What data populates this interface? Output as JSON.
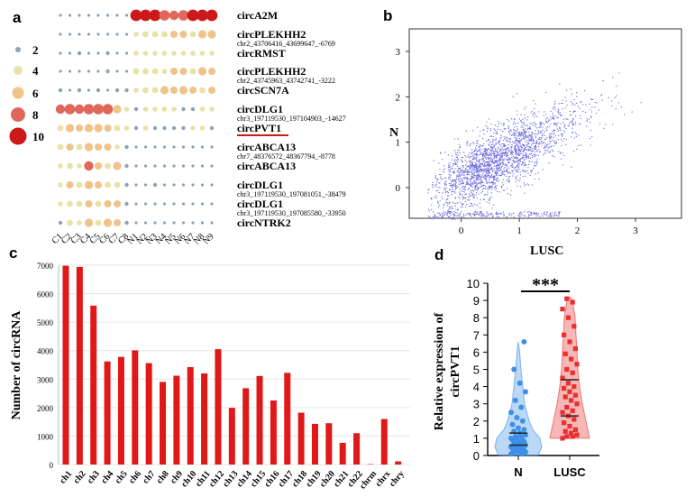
{
  "panels": {
    "a": {
      "letter": "a",
      "legend": [
        {
          "label": "2",
          "color": "#8fa2b4"
        },
        {
          "label": "4",
          "color": "#e8e2a6"
        },
        {
          "label": "6",
          "color": "#efc38a"
        },
        {
          "label": "8",
          "color": "#e0675c"
        },
        {
          "label": "10",
          "color": "#cc1a1a"
        }
      ],
      "samples": [
        "C1",
        "C2",
        "C3",
        "C4",
        "C5",
        "C6",
        "C7",
        "C8",
        "N1",
        "N2",
        "N3",
        "N4",
        "N5",
        "N6",
        "N7",
        "N8",
        "N9"
      ],
      "rows": [
        {
          "name": "circA2M",
          "sub": "",
          "values": [
            1,
            1,
            1,
            1,
            1,
            1,
            1,
            1,
            9,
            9,
            9,
            8,
            7,
            8,
            9,
            9,
            9
          ]
        },
        {
          "name": "circPLEKHH2",
          "sub": "chr2_43706416_43699647_-6769",
          "values": [
            1,
            1,
            1,
            1,
            1,
            1,
            1,
            1,
            3,
            4,
            4,
            4,
            5,
            5,
            4,
            6,
            6
          ]
        },
        {
          "name": "circRMST",
          "sub": "",
          "values": [
            1,
            1,
            2,
            1,
            1,
            2,
            1,
            1,
            3,
            3,
            3,
            3,
            3,
            3,
            3,
            3,
            3
          ]
        },
        {
          "name": "circPLEKHH2",
          "sub": "chr2_43745963_43742741_-3222",
          "values": [
            1,
            1,
            1,
            1,
            1,
            2,
            1,
            1,
            4,
            4,
            4,
            3,
            5,
            5,
            4,
            6,
            5
          ]
        },
        {
          "name": "circSCN7A",
          "sub": "",
          "values": [
            2,
            1,
            2,
            1,
            2,
            1,
            2,
            2,
            3,
            4,
            4,
            6,
            5,
            6,
            5,
            4,
            5
          ]
        },
        {
          "name": "circDLG1",
          "sub": "chr3_197119530_197104903_-14627",
          "values": [
            7,
            8,
            7,
            8,
            8,
            8,
            6,
            3,
            2,
            3,
            3,
            3,
            3,
            2,
            2,
            3,
            3
          ]
        },
        {
          "name": "circPVT1",
          "sub": "",
          "values": [
            4,
            6,
            5,
            6,
            6,
            5,
            4,
            3,
            2,
            3,
            2,
            2,
            2,
            2,
            3,
            3,
            2
          ]
        },
        {
          "name": "circABCA13",
          "sub": "chr7_48376572_48367794_-8778",
          "values": [
            4,
            5,
            4,
            6,
            5,
            5,
            3,
            2,
            1,
            1,
            1,
            1,
            1,
            1,
            1,
            1,
            1
          ]
        },
        {
          "name": "circABCA13",
          "sub": "",
          "values": [
            3,
            4,
            3,
            7,
            5,
            4,
            6,
            2,
            1,
            1,
            1,
            1,
            1,
            1,
            1,
            1,
            1
          ]
        },
        {
          "name": "circDLG1",
          "sub": "chr3_197119530_197081051_-38479",
          "values": [
            3,
            5,
            4,
            6,
            5,
            4,
            4,
            2,
            1,
            1,
            2,
            1,
            1,
            1,
            1,
            1,
            1
          ]
        },
        {
          "name": "circDLG1",
          "sub": "chr3_197119530_197085580_-33950",
          "values": [
            3,
            4,
            4,
            5,
            4,
            5,
            5,
            2,
            1,
            1,
            1,
            1,
            1,
            1,
            1,
            1,
            1
          ]
        },
        {
          "name": "circNTRK2",
          "sub": "",
          "values": [
            2,
            4,
            3,
            6,
            4,
            6,
            5,
            2,
            1,
            1,
            1,
            1,
            1,
            1,
            1,
            1,
            1
          ]
        }
      ],
      "highlight_color": "#cc1a1a"
    },
    "b": {
      "letter": "b",
      "ylabel": "N",
      "xlabel": "LUSC",
      "xticks": [
        "0",
        "1",
        "2",
        "3"
      ],
      "yticks": [
        "0",
        "1",
        "2",
        "3"
      ],
      "point_color": "#2a2ad0"
    },
    "c": {
      "letter": "c",
      "ylabel": "Number of circRNA",
      "bar_color": "#e01818"
    },
    "d": {
      "letter": "d",
      "ylabel_line1": "Relative expression of",
      "ylabel_line2": "circPVT1",
      "significance": "***",
      "n_color": "#3d8fe8",
      "lusc_color": "#e83030"
    }
  },
  "chart_data": [
    {
      "type": "heatmap",
      "panel": "a",
      "rows": [
        "circA2M",
        "circPLEKHH2",
        "circRMST",
        "circPLEKHH2",
        "circSCN7A",
        "circDLG1",
        "circPVT1",
        "circABCA13",
        "circABCA13",
        "circDLG1",
        "circDLG1",
        "circNTRK2"
      ],
      "columns": [
        "C1",
        "C2",
        "C3",
        "C4",
        "C5",
        "C6",
        "C7",
        "C8",
        "N1",
        "N2",
        "N3",
        "N4",
        "N5",
        "N6",
        "N7",
        "N8",
        "N9"
      ],
      "legend_values": [
        2,
        4,
        6,
        8,
        10
      ]
    },
    {
      "type": "scatter",
      "panel": "b",
      "xlabel": "LUSC",
      "ylabel": "N",
      "xlim": [
        -0.8,
        3.7
      ],
      "ylim": [
        -0.8,
        3.5
      ],
      "xticks": [
        0,
        1,
        2,
        3
      ],
      "yticks": [
        0,
        1,
        2,
        3
      ],
      "trend": {
        "slope": 0.65,
        "intercept": 0.2
      }
    },
    {
      "type": "bar",
      "panel": "c",
      "ylabel": "Number of circRNA",
      "ylim": [
        0,
        7000
      ],
      "yticks": [
        0,
        1000,
        2000,
        3000,
        4000,
        5000,
        6000,
        7000
      ],
      "categories": [
        "ch1",
        "ch2",
        "ch3",
        "ch4",
        "ch5",
        "ch6",
        "ch7",
        "ch8",
        "ch9",
        "ch10",
        "ch11",
        "ch12",
        "ch13",
        "ch14",
        "ch15",
        "ch16",
        "ch17",
        "ch18",
        "ch19",
        "ch20",
        "ch21",
        "ch22",
        "chrm",
        "chrx",
        "chry"
      ],
      "values": [
        6980,
        6940,
        5580,
        3620,
        3780,
        4010,
        3560,
        2900,
        3120,
        3420,
        3200,
        4050,
        1990,
        2680,
        3110,
        2250,
        3220,
        1820,
        1430,
        1450,
        760,
        1100,
        15,
        1600,
        110
      ]
    },
    {
      "type": "scatter",
      "panel": "d",
      "categories": [
        "N",
        "LUSC"
      ],
      "ylabel": "Relative expression of circPVT1",
      "ylim": [
        0,
        10
      ],
      "yticks": [
        0,
        1,
        2,
        3,
        4,
        5,
        6,
        7,
        8,
        9,
        10
      ],
      "series": [
        {
          "name": "N",
          "values": [
            0.1,
            0.1,
            0.2,
            0.2,
            0.2,
            0.3,
            0.3,
            0.3,
            0.4,
            0.4,
            0.5,
            0.5,
            0.5,
            0.6,
            0.6,
            0.7,
            0.7,
            0.8,
            0.8,
            0.9,
            0.9,
            1.0,
            1.0,
            1.1,
            1.1,
            1.2,
            1.3,
            1.4,
            1.5,
            1.6,
            1.8,
            2.0,
            2.2,
            2.5,
            2.8,
            3.2,
            3.7,
            4.2,
            5.0,
            6.6
          ]
        },
        {
          "name": "LUSC",
          "values": [
            1.0,
            1.1,
            1.1,
            1.2,
            1.3,
            1.4,
            1.5,
            1.7,
            1.9,
            2.1,
            2.3,
            2.5,
            2.6,
            2.8,
            3.0,
            3.2,
            3.4,
            3.5,
            3.7,
            3.9,
            4.0,
            4.2,
            4.5,
            4.8,
            5.0,
            5.3,
            5.6,
            5.9,
            6.2,
            6.6,
            7.0,
            7.5,
            8.0,
            8.5,
            8.9,
            9.1
          ]
        }
      ],
      "significance": "***"
    }
  ]
}
